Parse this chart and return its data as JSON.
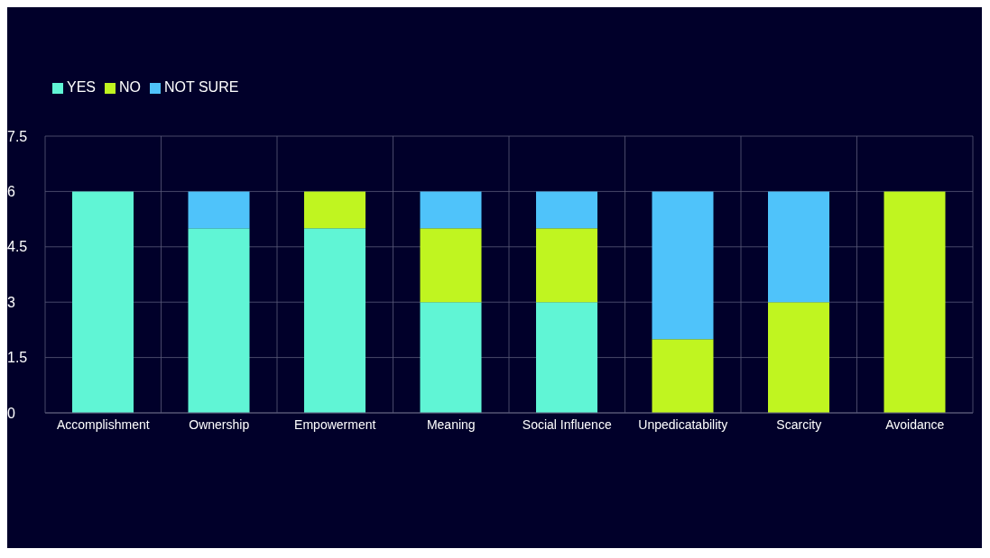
{
  "chart_data": {
    "type": "bar",
    "stacked": true,
    "categories": [
      "Accomplishment",
      "Ownership",
      "Empowerment",
      "Meaning",
      "Social Influence",
      "Unpedicatability",
      "Scarcity",
      "Avoidance"
    ],
    "series": [
      {
        "name": "YES",
        "color": "#60f5d5",
        "values": [
          6,
          5,
          5,
          3,
          3,
          0,
          0,
          0
        ]
      },
      {
        "name": "NO",
        "color": "#c0f520",
        "values": [
          0,
          0,
          1,
          2,
          2,
          2,
          3,
          6
        ]
      },
      {
        "name": "NOT SURE",
        "color": "#4fc3fa",
        "values": [
          0,
          1,
          0,
          1,
          1,
          4,
          3,
          0
        ]
      }
    ],
    "ylim": [
      0,
      7.5
    ],
    "yticks": [
      0,
      1.5,
      3,
      4.5,
      6,
      7.5
    ],
    "grid": true,
    "legend": "top left"
  }
}
